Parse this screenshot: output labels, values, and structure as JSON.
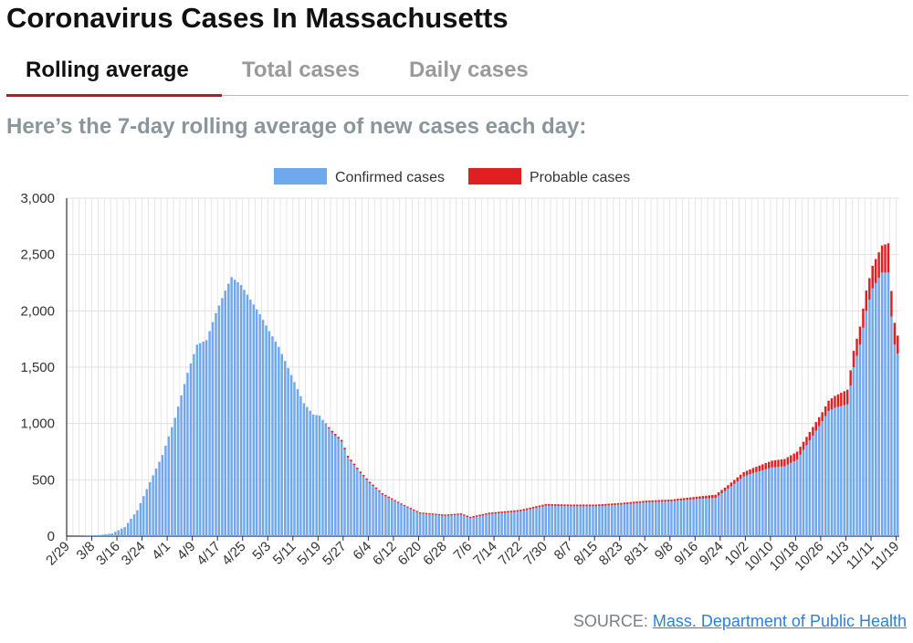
{
  "header": {
    "title": "Coronavirus Cases In Massachusetts"
  },
  "tabs": [
    {
      "label": "Rolling average",
      "active": true
    },
    {
      "label": "Total cases",
      "active": false
    },
    {
      "label": "Daily cases",
      "active": false
    }
  ],
  "subtitle": "Here’s the 7-day rolling average of new cases each day:",
  "source": {
    "prefix": "SOURCE:",
    "link_text": "Mass. Department of Public Health"
  },
  "colors": {
    "confirmed": "#6fa8ef",
    "probable": "#e02020",
    "accent": "#c8102e",
    "grid": "#e0e0e0"
  },
  "chart_data": {
    "type": "bar",
    "stacked": true,
    "title": "",
    "xlabel": "",
    "ylabel": "",
    "ylim": [
      0,
      3000
    ],
    "yticks": [
      "0",
      "500",
      "1,000",
      "1,500",
      "2,000",
      "2,500",
      "3,000"
    ],
    "x_tick_labels": [
      "2/29",
      "3/8",
      "3/16",
      "3/24",
      "4/1",
      "4/9",
      "4/17",
      "4/25",
      "5/3",
      "5/11",
      "5/19",
      "5/27",
      "6/4",
      "6/12",
      "6/20",
      "6/28",
      "7/6",
      "7/14",
      "7/22",
      "7/30",
      "8/7",
      "8/15",
      "8/23",
      "8/31",
      "9/8",
      "9/16",
      "9/24",
      "10/2",
      "10/10",
      "10/18",
      "10/26",
      "11/3",
      "11/11",
      "11/19"
    ],
    "legend": {
      "position": "top-center",
      "entries": [
        "Confirmed cases",
        "Probable cases"
      ]
    },
    "start_date": "2/29",
    "end_date": "11/19",
    "keyframes_confirmed": [
      [
        "2/29",
        0
      ],
      [
        "3/5",
        2
      ],
      [
        "3/10",
        10
      ],
      [
        "3/14",
        25
      ],
      [
        "3/18",
        80
      ],
      [
        "3/22",
        230
      ],
      [
        "3/26",
        480
      ],
      [
        "3/30",
        720
      ],
      [
        "4/3",
        1050
      ],
      [
        "4/7",
        1450
      ],
      [
        "4/10",
        1700
      ],
      [
        "4/13",
        1740
      ],
      [
        "4/16",
        1980
      ],
      [
        "4/19",
        2180
      ],
      [
        "4/21",
        2300
      ],
      [
        "4/24",
        2230
      ],
      [
        "4/27",
        2100
      ],
      [
        "4/30",
        1970
      ],
      [
        "5/3",
        1820
      ],
      [
        "5/6",
        1680
      ],
      [
        "5/10",
        1430
      ],
      [
        "5/14",
        1180
      ],
      [
        "5/17",
        1080
      ],
      [
        "5/19",
        1070
      ],
      [
        "5/23",
        920
      ],
      [
        "5/26",
        840
      ],
      [
        "5/28",
        700
      ],
      [
        "6/1",
        560
      ],
      [
        "6/4",
        470
      ],
      [
        "6/8",
        370
      ],
      [
        "6/14",
        280
      ],
      [
        "6/20",
        200
      ],
      [
        "6/28",
        180
      ],
      [
        "7/3",
        190
      ],
      [
        "7/6",
        160
      ],
      [
        "7/12",
        195
      ],
      [
        "7/22",
        220
      ],
      [
        "7/30",
        270
      ],
      [
        "8/7",
        265
      ],
      [
        "8/15",
        265
      ],
      [
        "8/23",
        280
      ],
      [
        "8/31",
        300
      ],
      [
        "9/8",
        310
      ],
      [
        "9/16",
        330
      ],
      [
        "9/22",
        340
      ],
      [
        "9/26",
        420
      ],
      [
        "10/1",
        530
      ],
      [
        "10/4",
        560
      ],
      [
        "10/10",
        610
      ],
      [
        "10/14",
        620
      ],
      [
        "10/18",
        680
      ],
      [
        "10/22",
        850
      ],
      [
        "10/26",
        1020
      ],
      [
        "10/28",
        1110
      ],
      [
        "10/30",
        1140
      ],
      [
        "11/3",
        1170
      ],
      [
        "11/5",
        1500
      ],
      [
        "11/7",
        1700
      ],
      [
        "11/9",
        2000
      ],
      [
        "11/11",
        2200
      ],
      [
        "11/14",
        2340
      ],
      [
        "11/16",
        2340
      ],
      [
        "11/17",
        1950
      ],
      [
        "11/18",
        1700
      ],
      [
        "11/19",
        1620
      ]
    ],
    "keyframes_probable": [
      [
        "2/29",
        0
      ],
      [
        "5/20",
        0
      ],
      [
        "5/23",
        15
      ],
      [
        "6/15",
        10
      ],
      [
        "7/30",
        15
      ],
      [
        "9/8",
        15
      ],
      [
        "9/16",
        20
      ],
      [
        "10/2",
        40
      ],
      [
        "10/10",
        60
      ],
      [
        "10/26",
        80
      ],
      [
        "11/3",
        130
      ],
      [
        "11/7",
        160
      ],
      [
        "11/11",
        200
      ],
      [
        "11/14",
        240
      ],
      [
        "11/16",
        260
      ],
      [
        "11/19",
        160
      ]
    ]
  }
}
